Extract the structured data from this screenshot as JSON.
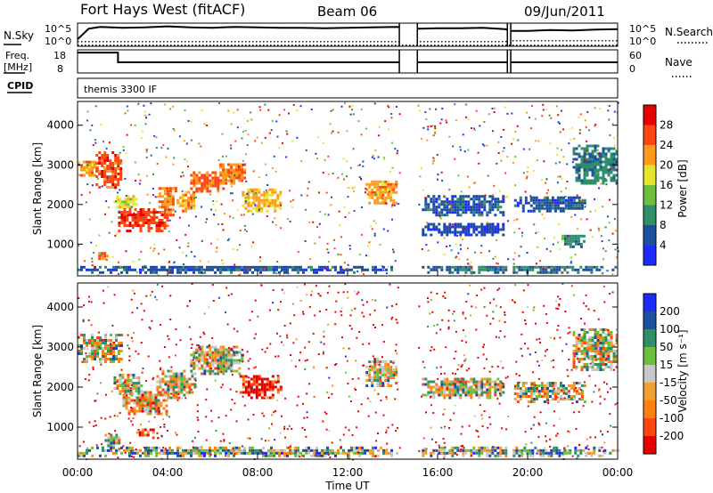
{
  "header": {
    "title": "Fort Hays West (fitACF)",
    "beam": "Beam 06",
    "date": "09/Jun/2011"
  },
  "chart_data": [
    {
      "type": "line",
      "panel": "nsky",
      "left_label": "N.Sky",
      "right_label": "N.Search",
      "left_ticks": [
        "10^5",
        "10^0"
      ],
      "right_ticks": [
        "10^5",
        "10^0"
      ],
      "series": [
        {
          "name": "N.Sky",
          "x": [
            0,
            0.5,
            1,
            2,
            3,
            4,
            5,
            6,
            7,
            8,
            9,
            10,
            11,
            12,
            13,
            14.2,
            15.2,
            16,
            17,
            18,
            19,
            19.3,
            20,
            21,
            22,
            23,
            24
          ],
          "values": [
            1.5,
            3.8,
            4.2,
            4.0,
            4.1,
            4.3,
            4.1,
            4.0,
            4.2,
            4.1,
            4.0,
            4.0,
            3.9,
            4.0,
            4.1,
            4.2,
            3.8,
            3.9,
            3.9,
            4.0,
            3.7,
            3.3,
            3.3,
            3.5,
            3.4,
            3.6,
            3.7
          ]
        },
        {
          "name": "N.Search",
          "x": [
            0,
            2,
            4,
            6,
            8,
            10,
            12,
            14.2,
            15.2,
            17,
            19,
            19.3,
            21,
            24
          ],
          "values": [
            1.0,
            1.0,
            1.0,
            1.0,
            1.0,
            1.0,
            1.0,
            1.0,
            1.0,
            1.0,
            1.0,
            1.2,
            1.2,
            1.2
          ]
        }
      ],
      "gaps": [
        [
          14.3,
          15.1
        ],
        [
          19.1,
          19.25
        ]
      ],
      "x_range": [
        0,
        24
      ]
    },
    {
      "type": "line",
      "panel": "freq",
      "left_label": "Freq.",
      "left_unit": "[MHz]",
      "right_label": "Nave",
      "left_ticks": [
        "18",
        "8"
      ],
      "right_ticks": [
        "60",
        "0"
      ],
      "cpid_label": "CPID",
      "cpid_text": "themis 3300 IF",
      "series": [
        {
          "name": "Freq.",
          "x": [
            0,
            1.8,
            1.8,
            14.2,
            15.2,
            19.1,
            19.3,
            24
          ],
          "values": [
            16.8,
            16.8,
            12.6,
            12.6,
            12.6,
            12.6,
            12.6,
            12.6
          ]
        },
        {
          "name": "Nave",
          "x": [
            0,
            24
          ],
          "values": [
            20,
            20
          ]
        }
      ],
      "gaps": [
        [
          14.3,
          15.1
        ],
        [
          19.1,
          19.25
        ]
      ],
      "x_range": [
        0,
        24
      ]
    },
    {
      "type": "heatmap",
      "panel": "power",
      "ylabel": "Slant Range [km]",
      "yticks": [
        1000,
        2000,
        3000,
        4000
      ],
      "ylim": [
        200,
        4600
      ],
      "colorbar_label": "Power [dB]",
      "colorbar_ticks": [
        4,
        8,
        12,
        16,
        20,
        24,
        28
      ],
      "colorbar_range": [
        0,
        32
      ],
      "colors": [
        "#1c2cff",
        "#1f4f9f",
        "#2e8f6a",
        "#6fbf3f",
        "#e5e52c",
        "#ff9a1a",
        "#ff4510",
        "#e80000"
      ],
      "scatter_seed": 7,
      "blobs": [
        {
          "t0": 0.0,
          "t1": 0.9,
          "r0": 2700,
          "r1": 3100,
          "v": 22
        },
        {
          "t0": 0.8,
          "t1": 1.9,
          "r0": 2400,
          "r1": 3300,
          "v": 26
        },
        {
          "t0": 1.6,
          "t1": 2.6,
          "r0": 1900,
          "r1": 2200,
          "v": 18
        },
        {
          "t0": 1.8,
          "t1": 4.0,
          "r0": 1300,
          "r1": 1900,
          "v": 27
        },
        {
          "t0": 3.6,
          "t1": 4.4,
          "r0": 1700,
          "r1": 2400,
          "v": 24
        },
        {
          "t0": 4.4,
          "t1": 5.2,
          "r0": 1800,
          "r1": 2300,
          "v": 22
        },
        {
          "t0": 5.0,
          "t1": 6.5,
          "r0": 2300,
          "r1": 2800,
          "v": 25
        },
        {
          "t0": 6.3,
          "t1": 7.4,
          "r0": 2500,
          "r1": 3000,
          "v": 23
        },
        {
          "t0": 7.3,
          "t1": 9.0,
          "r0": 1800,
          "r1": 2400,
          "v": 21
        },
        {
          "t0": 0.8,
          "t1": 1.3,
          "r0": 600,
          "r1": 800,
          "v": 24
        },
        {
          "t0": 12.8,
          "t1": 14.2,
          "r0": 2000,
          "r1": 2600,
          "v": 22
        },
        {
          "t0": 15.3,
          "t1": 18.9,
          "r0": 1700,
          "r1": 2200,
          "v": 6
        },
        {
          "t0": 15.3,
          "t1": 18.9,
          "r0": 1200,
          "r1": 1500,
          "v": 5
        },
        {
          "t0": 19.4,
          "t1": 22.5,
          "r0": 1800,
          "r1": 2200,
          "v": 6
        },
        {
          "t0": 21.5,
          "t1": 22.5,
          "r0": 900,
          "r1": 1200,
          "v": 10
        },
        {
          "t0": 22.0,
          "t1": 24.0,
          "r0": 2500,
          "r1": 3500,
          "v": 9
        },
        {
          "t0": 0.0,
          "t1": 14.2,
          "r0": 250,
          "r1": 450,
          "v": 6
        },
        {
          "t0": 15.3,
          "t1": 24.0,
          "r0": 250,
          "r1": 450,
          "v": 8
        }
      ]
    },
    {
      "type": "heatmap",
      "panel": "velocity",
      "ylabel": "Slant Range [km]",
      "yticks": [
        1000,
        2000,
        3000,
        4000
      ],
      "ylim": [
        200,
        4600
      ],
      "xlabel": "Time UT",
      "xticks": [
        "00:00",
        "04:00",
        "08:00",
        "12:00",
        "16:00",
        "20:00",
        "00:00"
      ],
      "xtick_hours": [
        0,
        4,
        8,
        12,
        16,
        20,
        24
      ],
      "colorbar_label": "Velocity [m s⁻¹]",
      "colorbar_ticks": [
        "200",
        "100",
        "50",
        "15",
        "-15",
        "-50",
        "-100",
        "-200"
      ],
      "colors": [
        "#1c2cff",
        "#1f4f9f",
        "#2e8f6a",
        "#6fbf3f",
        "#c8c8c8",
        "#f0a030",
        "#ff8010",
        "#ff4510",
        "#e80000"
      ],
      "scatter_seed": 13,
      "blobs": [
        {
          "t0": 0.0,
          "t1": 2.0,
          "r0": 2600,
          "r1": 3300,
          "v": 4
        },
        {
          "t0": 1.6,
          "t1": 2.8,
          "r0": 1800,
          "r1": 2300,
          "v": 4
        },
        {
          "t0": 2.0,
          "t1": 4.0,
          "r0": 1300,
          "r1": 1900,
          "v": 5
        },
        {
          "t0": 3.5,
          "t1": 5.2,
          "r0": 1700,
          "r1": 2400,
          "v": 4
        },
        {
          "t0": 5.0,
          "t1": 7.3,
          "r0": 2300,
          "r1": 3000,
          "v": 4
        },
        {
          "t0": 7.2,
          "t1": 9.0,
          "r0": 1700,
          "r1": 2300,
          "v": 8
        },
        {
          "t0": 2.6,
          "t1": 3.4,
          "r0": 700,
          "r1": 900,
          "v": 7
        },
        {
          "t0": 1.2,
          "t1": 1.8,
          "r0": 500,
          "r1": 800,
          "v": 4
        },
        {
          "t0": 12.8,
          "t1": 14.2,
          "r0": 2000,
          "r1": 2700,
          "v": 4
        },
        {
          "t0": 15.3,
          "t1": 18.9,
          "r0": 1700,
          "r1": 2200,
          "v": 4
        },
        {
          "t0": 19.4,
          "t1": 22.5,
          "r0": 1600,
          "r1": 2100,
          "v": 4
        },
        {
          "t0": 22.0,
          "t1": 24.0,
          "r0": 2400,
          "r1": 3400,
          "v": 4
        },
        {
          "t0": 0.0,
          "t1": 14.2,
          "r0": 250,
          "r1": 450,
          "v": 3
        },
        {
          "t0": 15.3,
          "t1": 24.0,
          "r0": 250,
          "r1": 450,
          "v": 3
        }
      ]
    }
  ]
}
